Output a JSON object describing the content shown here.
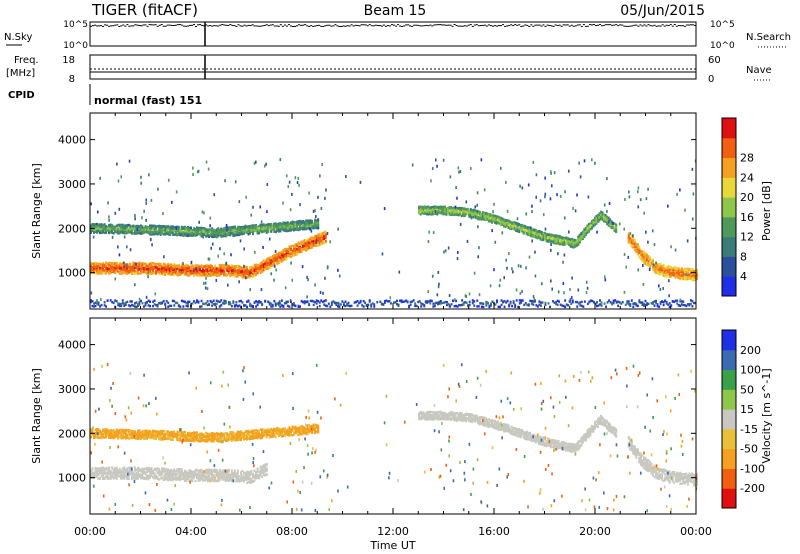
{
  "header": {
    "title": "TIGER (fitACF)",
    "beam": "Beam 15",
    "date": "05/Jun/2015"
  },
  "top_panels": {
    "nsky_label": "N.Sky",
    "nsearch_label": "N.Search",
    "nsky_ticks": [
      "10^5",
      "10^0"
    ],
    "nsearch_ticks": [
      "10^5",
      "10^0"
    ],
    "freq_label_1": "Freq.",
    "freq_label_2": "[MHz]",
    "freq_ticks": [
      "18",
      "8"
    ],
    "nave_label": "Nave",
    "nave_ticks": [
      "60",
      "0"
    ],
    "cpid_label": "CPID",
    "cpid_text": "normal (fast) 151"
  },
  "colors": {
    "power_scale": [
      "#1f2fe8",
      "#2b4f9a",
      "#3a7b7a",
      "#4f9a5a",
      "#8fc64a",
      "#e8d83a",
      "#f4a020",
      "#f06010",
      "#e01010"
    ],
    "velocity_scale": [
      "#e01010",
      "#f06010",
      "#f4a020",
      "#e8c03a",
      "#c8c8c0",
      "#8fc64a",
      "#3aa04a",
      "#3a6ab0",
      "#1f2fe8"
    ],
    "ground_scatter": "#c8c8c0"
  },
  "chart_data": [
    {
      "type": "heatmap",
      "panel": "power",
      "xlabel": "Time UT",
      "ylabel": "Slant Range [km]",
      "xlim": [
        0,
        24
      ],
      "ylim": [
        180,
        4600
      ],
      "x_ticks": [
        "00:00",
        "04:00",
        "08:00",
        "12:00",
        "16:00",
        "20:00",
        "00:00"
      ],
      "y_ticks": [
        1000,
        2000,
        3000,
        4000
      ],
      "colorbar_label": "Power [dB]",
      "colorbar_ticks": [
        4,
        8,
        12,
        16,
        20,
        24,
        28
      ],
      "features": [
        {
          "name": "strong_band",
          "x": [
            0,
            2,
            4,
            5.5,
            6.3,
            7,
            8,
            9.3
          ],
          "y": [
            1100,
            1100,
            1050,
            1050,
            1000,
            1200,
            1500,
            1800
          ],
          "width": 250,
          "power": 24
        },
        {
          "name": "upper_band",
          "x": [
            0,
            3,
            5,
            7,
            9
          ],
          "y": [
            2000,
            1950,
            1900,
            2000,
            2100
          ],
          "width": 200,
          "power": 12
        },
        {
          "name": "ducting_trace",
          "x": [
            13,
            14,
            15,
            16,
            17,
            18,
            19.2,
            19.7,
            20.2,
            20.8
          ],
          "y": [
            2400,
            2400,
            2350,
            2200,
            2000,
            1800,
            1650,
            2000,
            2300,
            2000
          ],
          "width": 180,
          "power": 14
        },
        {
          "name": "evening_strong",
          "x": [
            21.3,
            21.8,
            22.4,
            23,
            24
          ],
          "y": [
            1800,
            1400,
            1100,
            1000,
            950
          ],
          "width": 250,
          "power": 22
        },
        {
          "name": "near_range",
          "x": [
            0,
            24
          ],
          "y": [
            300,
            300
          ],
          "width": 150,
          "power": 6
        }
      ]
    },
    {
      "type": "heatmap",
      "panel": "velocity",
      "xlabel": "Time UT",
      "ylabel": "Slant Range [km]",
      "xlim": [
        0,
        24
      ],
      "ylim": [
        180,
        4600
      ],
      "x_ticks": [
        "00:00",
        "04:00",
        "08:00",
        "12:00",
        "16:00",
        "20:00",
        "00:00"
      ],
      "y_ticks": [
        1000,
        2000,
        3000,
        4000
      ],
      "colorbar_label": "Velocity [m s^-1]",
      "colorbar_ticks": [
        200,
        100,
        50,
        15,
        -15,
        -50,
        -100,
        -200
      ],
      "features": [
        {
          "name": "ground_scatter_band",
          "x": [
            0,
            2,
            4,
            5.5,
            6.3,
            7
          ],
          "y": [
            1100,
            1100,
            1050,
            1050,
            1000,
            1200
          ],
          "width": 260,
          "velocity": 0
        },
        {
          "name": "orange_band",
          "x": [
            0,
            3,
            5,
            7,
            9
          ],
          "y": [
            2000,
            1950,
            1900,
            2000,
            2100
          ],
          "width": 200,
          "velocity": -60
        },
        {
          "name": "gray_trace",
          "x": [
            13,
            14,
            15,
            16,
            17,
            18,
            19.2,
            19.7,
            20.2,
            20.8
          ],
          "y": [
            2400,
            2400,
            2350,
            2200,
            2000,
            1800,
            1650,
            2000,
            2300,
            2000
          ],
          "width": 180,
          "velocity": 0
        },
        {
          "name": "evening_gray",
          "x": [
            21.3,
            21.8,
            22.4,
            23,
            24
          ],
          "y": [
            1800,
            1400,
            1100,
            1000,
            950
          ],
          "width": 260,
          "velocity": 0
        }
      ]
    }
  ]
}
